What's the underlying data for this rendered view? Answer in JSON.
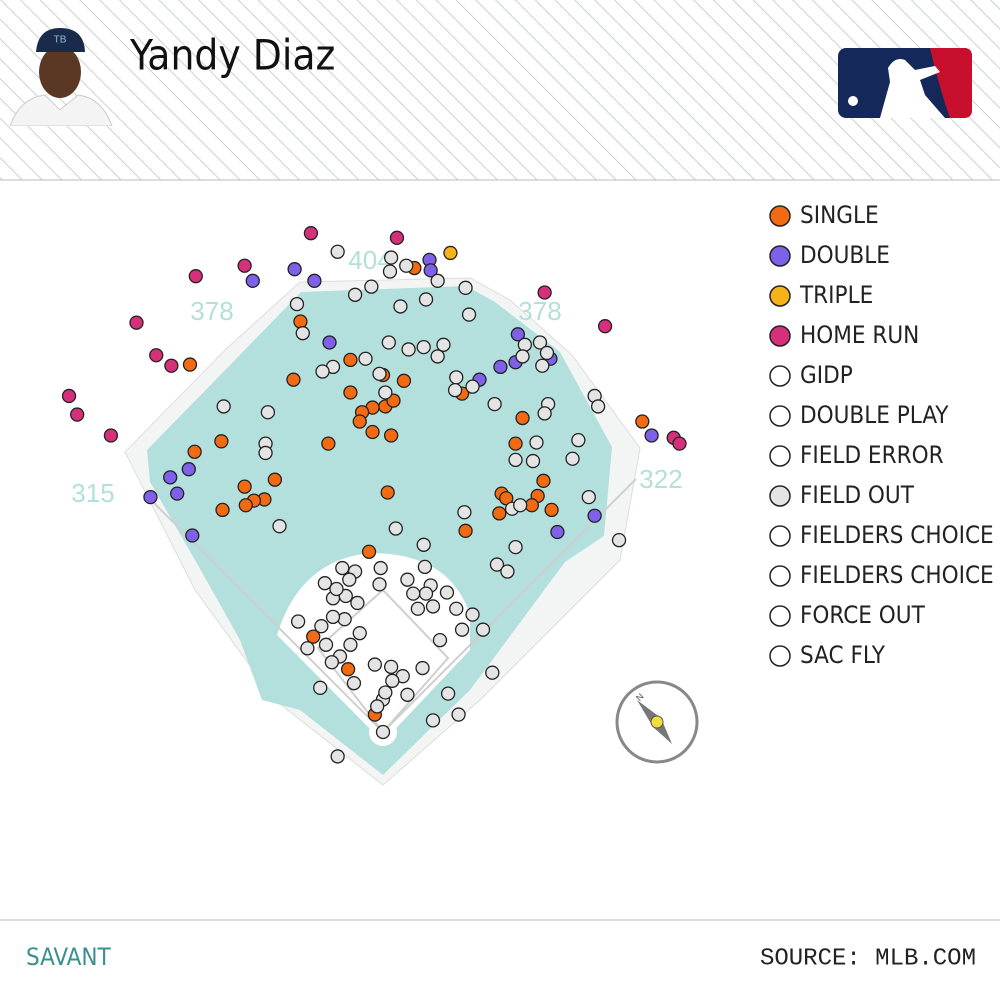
{
  "header": {
    "player": "Yandy Diaz"
  },
  "footer": {
    "left": "SAVANT",
    "right": "SOURCE: MLB.COM"
  },
  "field": {
    "labels": [
      "315",
      "378",
      "404",
      "378",
      "322"
    ]
  },
  "chart_data": {
    "type": "scatter",
    "series": [
      {
        "name": "SINGLE",
        "color": "#f26b13",
        "x": [
          27,
          -71,
          -166,
          -28,
          -77,
          18,
          0,
          -28,
          2,
          -9,
          9,
          -18,
          -20,
          -9,
          7,
          -47,
          68,
          120,
          114,
          223,
          -139,
          -162,
          -119,
          -93,
          -102,
          -111,
          -118,
          -138,
          4,
          102,
          106,
          133,
          138,
          100,
          128,
          145,
          71,
          -12,
          -60,
          -30,
          -7
        ],
        "y": [
          399,
          353,
          316,
          320,
          303,
          302,
          307,
          292,
          280,
          279,
          285,
          275,
          267,
          258,
          255,
          248,
          291,
          270,
          248,
          267,
          250,
          241,
          211,
          217,
          200,
          199,
          195,
          191,
          206,
          205,
          201,
          203,
          216,
          188,
          195,
          191,
          173,
          155,
          82,
          54,
          15
        ]
      },
      {
        "name": "DOUBLE",
        "color": "#7f60e8",
        "x": [
          -112,
          -76,
          -59,
          40,
          41,
          -46,
          116,
          101,
          114,
          144,
          83,
          -167,
          -183,
          -177,
          -200,
          -164,
          150,
          182,
          231
        ],
        "y": [
          388,
          398,
          388,
          406,
          397,
          335,
          342,
          314,
          318,
          321,
          303,
          226,
          219,
          205,
          202,
          169,
          172,
          186,
          255
        ]
      },
      {
        "name": "TRIPLE",
        "color": "#f5b21b",
        "x": [
          58
        ],
        "y": [
          412
        ]
      },
      {
        "name": "HOME RUN",
        "color": "#d6307a",
        "x": [
          -62,
          12,
          -119,
          -161,
          -212,
          -195,
          -182,
          -270,
          -263,
          -234,
          139,
          191,
          250,
          255
        ],
        "y": [
          429,
          425,
          401,
          392,
          352,
          324,
          315,
          289,
          273,
          255,
          378,
          349,
          253,
          248
        ]
      },
      {
        "name": "GIDP",
        "color": "#ffffff",
        "x": [],
        "y": []
      },
      {
        "name": "DOUBLE PLAY",
        "color": "#ffffff",
        "x": [],
        "y": []
      },
      {
        "name": "FIELD ERROR",
        "color": "#ffffff",
        "x": [],
        "y": []
      },
      {
        "name": "FIELD OUT",
        "color": "#e4e4e4",
        "x": [
          -39,
          7,
          20,
          6,
          47,
          -10,
          -24,
          37,
          71,
          -74,
          15,
          74,
          -69,
          -15,
          5,
          22,
          35,
          47,
          52,
          -43,
          -52,
          -3,
          2,
          63,
          62,
          77,
          122,
          120,
          135,
          141,
          137,
          96,
          142,
          139,
          182,
          185,
          -137,
          -99,
          -101,
          -101,
          168,
          132,
          114,
          129,
          163,
          70,
          177,
          111,
          118,
          -89,
          11,
          35,
          114,
          203,
          98,
          107,
          -35,
          -24,
          -2,
          21,
          36,
          41,
          37,
          55,
          43,
          30,
          63,
          77,
          86,
          68,
          49,
          -50,
          -43,
          -32,
          -22,
          -33,
          -43,
          -53,
          -73,
          -65,
          -49,
          -37,
          -28,
          -44,
          -25,
          -7,
          7,
          17,
          34,
          8,
          21,
          0,
          -5,
          2,
          94,
          56,
          -54,
          43,
          65,
          0,
          -39,
          -29,
          -40,
          -3,
          26,
          -20
        ],
        "y": [
          413,
          408,
          401,
          396,
          388,
          383,
          376,
          372,
          382,
          368,
          366,
          359,
          343,
          321,
          335,
          329,
          331,
          323,
          333,
          314,
          310,
          308,
          292,
          305,
          294,
          297,
          333,
          323,
          335,
          326,
          315,
          282,
          282,
          274,
          289,
          280,
          280,
          275,
          248,
          240,
          251,
          249,
          234,
          233,
          235,
          189,
          202,
          192,
          195,
          177,
          175,
          161,
          159,
          165,
          144,
          138,
          141,
          138,
          141,
          131,
          142,
          126,
          119,
          120,
          108,
          106,
          106,
          101,
          88,
          88,
          79,
          128,
          115,
          117,
          111,
          97,
          99,
          91,
          95,
          72,
          75,
          65,
          75,
          60,
          42,
          58,
          56,
          48,
          55,
          44,
          32,
          28,
          22,
          34,
          51,
          33,
          38,
          10,
          15,
          0,
          -21,
          131,
          123,
          127,
          119,
          85
        ]
      },
      {
        "name": "FIELDERS CHOICE",
        "color": "#ffffff",
        "x": [],
        "y": []
      },
      {
        "name": "FIELDERS CHOICE OUT",
        "color": "#ffffff",
        "x": [],
        "y": []
      },
      {
        "name": "FORCE OUT",
        "color": "#ffffff",
        "x": [],
        "y": []
      },
      {
        "name": "SAC FLY",
        "color": "#ffffff",
        "x": [],
        "y": []
      }
    ]
  }
}
